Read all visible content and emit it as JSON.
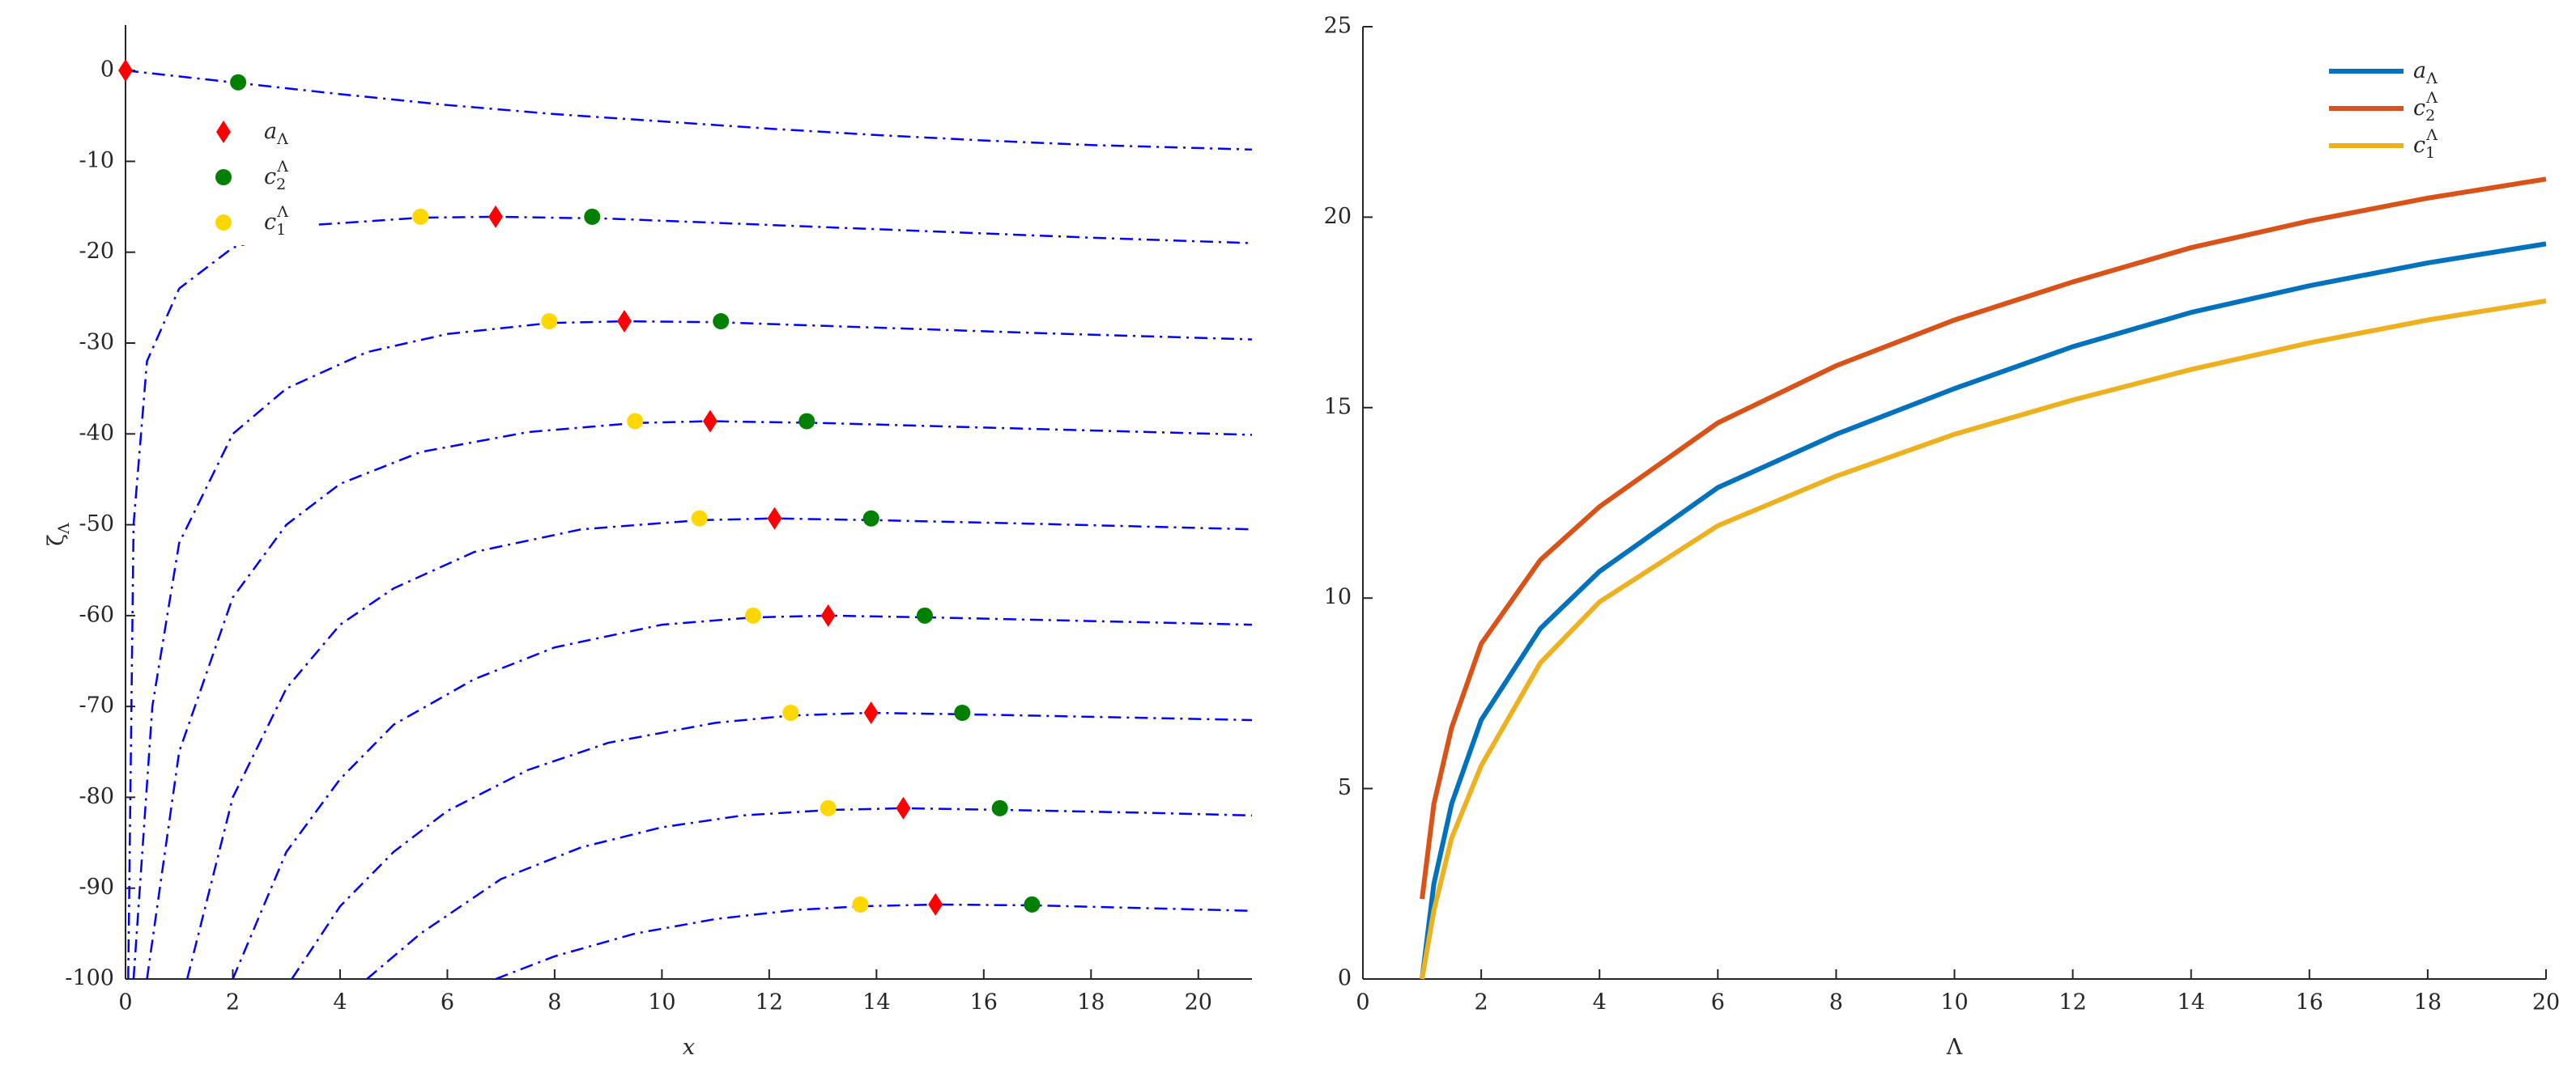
{
  "chart_data": [
    {
      "type": "line",
      "x_label": "x",
      "y_label": "ζΛ",
      "xlim": [
        0,
        21
      ],
      "ylim": [
        -100,
        5
      ],
      "xticks": [
        0,
        2,
        4,
        6,
        8,
        10,
        12,
        14,
        16,
        18,
        20
      ],
      "yticks": [
        -100,
        -90,
        -80,
        -70,
        -60,
        -50,
        -40,
        -30,
        -20,
        -10,
        0
      ],
      "line_style": "dashdot",
      "series": [
        {
          "color": "#0000ff",
          "x": [
            0,
            2,
            4,
            6,
            8,
            10,
            12,
            14,
            16,
            18,
            21
          ],
          "values": [
            0,
            -1.3,
            -2.6,
            -3.8,
            -4.8,
            -5.6,
            -6.4,
            -7.1,
            -7.7,
            -8.2,
            -8.7
          ]
        },
        {
          "color": "#0000ff",
          "x": [
            0.05,
            0.15,
            0.4,
            1,
            2,
            3.5,
            5.5,
            6.9,
            9,
            12,
            15,
            18,
            21
          ],
          "values": [
            -100,
            -50,
            -32,
            -24,
            -19.5,
            -17,
            -16.2,
            -16.1,
            -16.3,
            -17,
            -17.7,
            -18.4,
            -19
          ]
        },
        {
          "color": "#0000ff",
          "x": [
            0.15,
            0.5,
            1,
            2,
            3,
            4.5,
            6,
            7.9,
            9.3,
            11,
            14,
            17,
            21
          ],
          "values": [
            -100,
            -70,
            -52,
            -40,
            -35,
            -31,
            -29,
            -27.8,
            -27.6,
            -27.7,
            -28.3,
            -28.9,
            -29.6
          ]
        },
        {
          "color": "#0000ff",
          "x": [
            0.4,
            1,
            2,
            3,
            4,
            5.5,
            7.5,
            9.5,
            10.9,
            13,
            16,
            21
          ],
          "values": [
            -100,
            -75,
            -58,
            -50,
            -45.5,
            -42,
            -39.8,
            -38.8,
            -38.6,
            -38.8,
            -39.3,
            -40.1
          ]
        },
        {
          "color": "#0000ff",
          "x": [
            1.15,
            2,
            3,
            4,
            5,
            6.5,
            8.5,
            10.7,
            12.1,
            14,
            17,
            21
          ],
          "values": [
            -100,
            -80,
            -68,
            -61,
            -57,
            -53,
            -50.5,
            -49.5,
            -49.3,
            -49.5,
            -49.9,
            -50.5
          ]
        },
        {
          "color": "#0000ff",
          "x": [
            2,
            3,
            4,
            5,
            6.5,
            8,
            10,
            11.7,
            13.1,
            15,
            18,
            21
          ],
          "values": [
            -100,
            -86,
            -78,
            -72,
            -67,
            -63.5,
            -61,
            -60.2,
            -60,
            -60.2,
            -60.6,
            -61
          ]
        },
        {
          "color": "#0000ff",
          "x": [
            3.1,
            4,
            5,
            6,
            7.5,
            9,
            11,
            12.4,
            13.9,
            16,
            18.5,
            21
          ],
          "values": [
            -100,
            -92,
            -86,
            -81.5,
            -77,
            -74,
            -71.8,
            -71,
            -70.7,
            -70.9,
            -71.2,
            -71.5
          ]
        },
        {
          "color": "#0000ff",
          "x": [
            4.5,
            5.5,
            7,
            8.5,
            10,
            11.5,
            13.1,
            14.5,
            16.5,
            19,
            21
          ],
          "values": [
            -100,
            -95,
            -89,
            -85.5,
            -83.3,
            -82,
            -81.4,
            -81.2,
            -81.4,
            -81.7,
            -82
          ]
        },
        {
          "color": "#0000ff",
          "x": [
            6.9,
            8,
            9.5,
            11,
            12.5,
            13.7,
            15.1,
            17,
            19,
            21
          ],
          "values": [
            -100,
            -97.5,
            -95,
            -93.4,
            -92.4,
            -92,
            -91.8,
            -91.9,
            -92.2,
            -92.5
          ]
        }
      ],
      "markers": [
        {
          "name": "aΛ",
          "color": "#ff0000",
          "marker": "diamond",
          "x": [
            0,
            6.9,
            9.3,
            10.9,
            12.1,
            13.1,
            13.9,
            14.5,
            15.1
          ],
          "values": [
            0,
            -16.1,
            -27.6,
            -38.6,
            -49.3,
            -60,
            -70.7,
            -81.2,
            -91.8
          ]
        },
        {
          "name": "c2Λ",
          "color": "#007f00",
          "marker": "circle",
          "x": [
            2.1,
            8.7,
            11.1,
            12.7,
            13.9,
            14.9,
            15.6,
            16.3,
            16.9
          ],
          "values": [
            -1.3,
            -16.1,
            -27.6,
            -38.6,
            -49.3,
            -60,
            -70.7,
            -81.2,
            -91.8
          ]
        },
        {
          "name": "c1Λ",
          "color": "#ffd700",
          "marker": "circle",
          "x": [
            5.5,
            7.9,
            9.5,
            10.7,
            11.7,
            12.4,
            13.1,
            13.7
          ],
          "values": [
            -16.1,
            -27.6,
            -38.6,
            -49.3,
            -60,
            -70.7,
            -81.2,
            -91.8
          ]
        }
      ]
    },
    {
      "type": "line",
      "x_label": "Λ",
      "xlim": [
        0,
        20
      ],
      "ylim": [
        0,
        25
      ],
      "xticks": [
        0,
        2,
        4,
        6,
        8,
        10,
        12,
        14,
        16,
        18,
        20
      ],
      "yticks": [
        0,
        5,
        10,
        15,
        20,
        25
      ],
      "x": [
        1,
        1.2,
        1.5,
        2,
        3,
        4,
        6,
        8,
        10,
        12,
        14,
        16,
        18,
        20
      ],
      "series": [
        {
          "name": "aΛ",
          "color": "#0072bd",
          "values": [
            0,
            2.5,
            4.6,
            6.8,
            9.2,
            10.7,
            12.9,
            14.3,
            15.5,
            16.6,
            17.5,
            18.2,
            18.8,
            19.3
          ]
        },
        {
          "name": "c2Λ",
          "color": "#d95319",
          "values": [
            2.1,
            4.6,
            6.6,
            8.8,
            11,
            12.4,
            14.6,
            16.1,
            17.3,
            18.3,
            19.2,
            19.9,
            20.5,
            21
          ]
        },
        {
          "name": "c1Λ",
          "color": "#edb120",
          "values": [
            0,
            1.8,
            3.7,
            5.6,
            8.3,
            9.9,
            11.9,
            13.2,
            14.3,
            15.2,
            16,
            16.7,
            17.3,
            17.8
          ]
        }
      ]
    }
  ]
}
